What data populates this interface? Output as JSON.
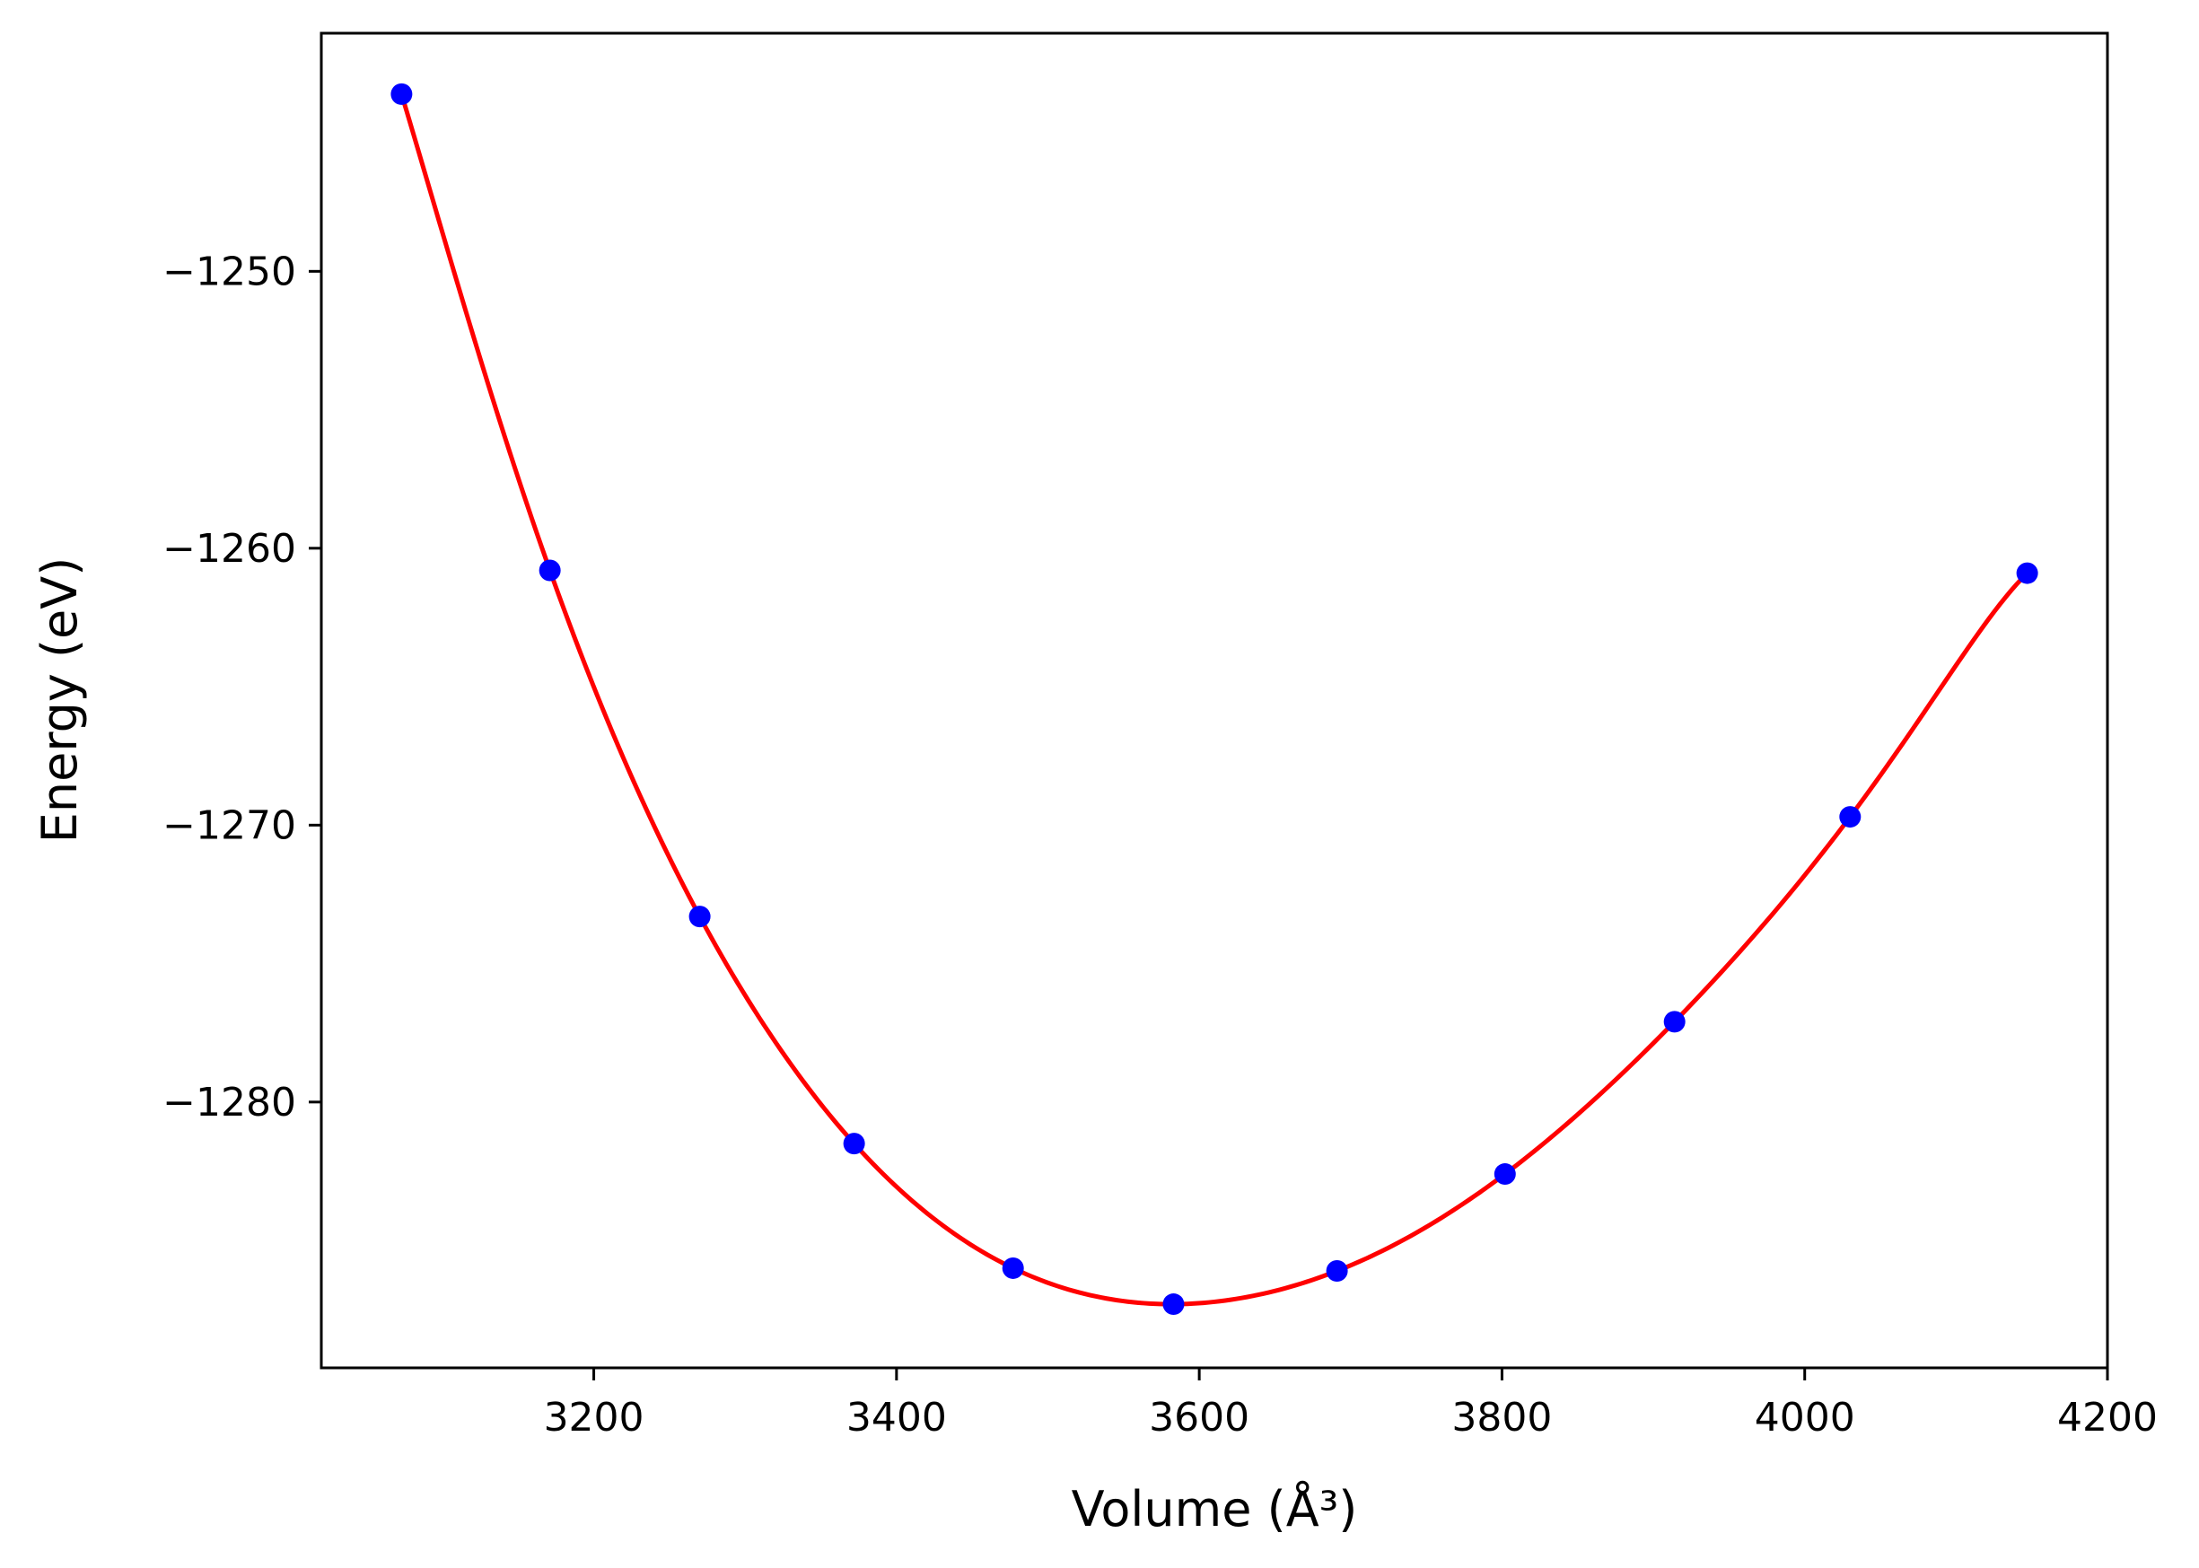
{
  "chart_data": {
    "type": "line",
    "xlabel": "Volume (Å³)",
    "ylabel": "Energy (eV)",
    "xlim": [
      3020,
      4200
    ],
    "ylim": [
      -1289.6,
      -1241.4
    ],
    "xticks": [
      3200,
      3400,
      3600,
      3800,
      4000,
      4200
    ],
    "yticks": [
      -1280,
      -1270,
      -1260,
      -1250
    ],
    "xtick_labels": [
      "3200",
      "3400",
      "3600",
      "3800",
      "4000",
      "4200"
    ],
    "ytick_labels": [
      "−1280",
      "−1270",
      "−1260",
      "−1250"
    ],
    "grid": false,
    "legend": "none",
    "series": [
      {
        "kind": "scatter",
        "color": "#0000ff",
        "x": [
          3073,
          3171,
          3270,
          3372,
          3477,
          3583,
          3691,
          3802,
          3914,
          4030,
          4147
        ],
        "y": [
          -1243.6,
          -1260.8,
          -1273.3,
          -1281.5,
          -1286.0,
          -1287.3,
          -1286.1,
          -1282.6,
          -1277.1,
          -1269.7,
          -1260.9
        ]
      },
      {
        "kind": "line",
        "color": "#ff0000",
        "fit": "polynomial-through-points"
      }
    ]
  }
}
